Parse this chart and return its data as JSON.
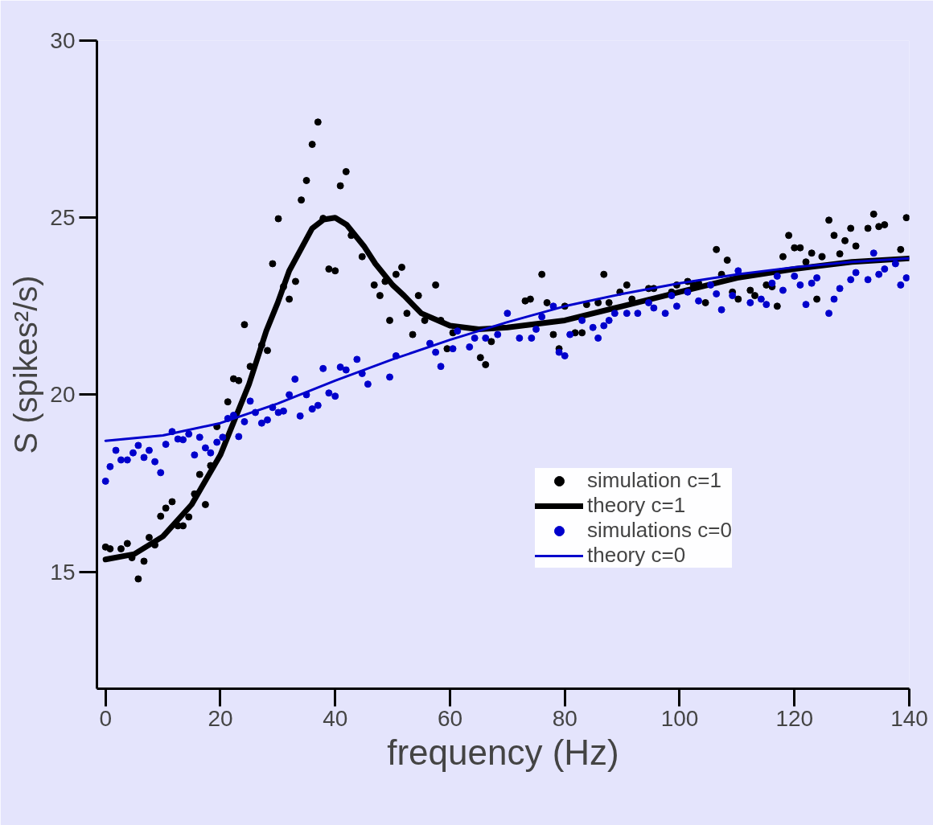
{
  "chart_data": {
    "type": "scatter",
    "xlabel": "frequency (Hz)",
    "ylabel": "S (spikes²/s)",
    "xlim": [
      -1.5,
      140
    ],
    "ylim": [
      11.7,
      30
    ],
    "xticks": [
      0,
      20,
      40,
      60,
      80,
      100,
      120,
      140
    ],
    "yticks": [
      15,
      20,
      25,
      30
    ],
    "grid": false,
    "legend": "right",
    "series": [
      {
        "name": "simulation c=1",
        "marker": "circle",
        "color": "#000000",
        "x": [
          0,
          0.8,
          2.7,
          3.8,
          4.6,
          5.7,
          6.7,
          7.6,
          8.6,
          9.6,
          10.5,
          11.6,
          12.6,
          13.5,
          14.5,
          15.5,
          16.4,
          17.4,
          18.3,
          19.4,
          21.3,
          22.3,
          23.2,
          24.2,
          25.2,
          27.2,
          28.2,
          29.1,
          30.1,
          31,
          32,
          33.1,
          34.1,
          35,
          36,
          37,
          37.9,
          38.9,
          40,
          40.9,
          41.9,
          42.8,
          44.7,
          46.8,
          47.8,
          48.7,
          49.5,
          50.6,
          51.6,
          52.5,
          53.5,
          54.5,
          55.6,
          57.5,
          58.4,
          59.5,
          60.5,
          65.3,
          66.2,
          67.2,
          73.1,
          74,
          76,
          76.9,
          78,
          79,
          80,
          81.8,
          83,
          83.8,
          85.8,
          86.8,
          87.7,
          89.6,
          90.8,
          91.7,
          94.6,
          95.5,
          98.6,
          99.5,
          101.4,
          102.4,
          103.3,
          104.5,
          106.4,
          107.3,
          108.3,
          109.2,
          110.2,
          112.3,
          113.1,
          115.1,
          116.1,
          117,
          118,
          119,
          120,
          121,
          122,
          123,
          123.9,
          124.8,
          126,
          126.9,
          127.9,
          128.8,
          129.8,
          130.7,
          132.8,
          133.8,
          134.7,
          135.7,
          138.5,
          139.5
        ],
        "values": [
          15.7,
          15.65,
          15.65,
          15.8,
          15.4,
          14.8,
          15.3,
          15.97,
          15.76,
          16.57,
          16.8,
          16.98,
          16.3,
          16.3,
          16.55,
          17.2,
          17.75,
          16.9,
          18.0,
          19.1,
          19.8,
          20.45,
          20.4,
          21.98,
          20.8,
          21.4,
          21.25,
          23.7,
          24.97,
          23.05,
          22.7,
          23.2,
          25.5,
          26.05,
          27.07,
          27.7,
          24.98,
          23.55,
          23.5,
          25.9,
          26.3,
          24.5,
          23.9,
          23.1,
          22.8,
          23.2,
          22.1,
          23.4,
          23.6,
          22.3,
          21.7,
          22.8,
          22.1,
          23.1,
          22.1,
          21.3,
          21.75,
          21.05,
          20.85,
          21.5,
          22.65,
          22.7,
          23.4,
          22.6,
          21.7,
          21.3,
          22.5,
          21.75,
          21.75,
          22.55,
          22.6,
          23.4,
          22.6,
          22.9,
          23.1,
          22.7,
          23.0,
          23.0,
          22.9,
          23.1,
          23.2,
          23.1,
          23.15,
          22.6,
          24.1,
          23.4,
          23.8,
          22.9,
          22.7,
          22.95,
          22.8,
          23.1,
          23.05,
          22.5,
          23.9,
          24.5,
          24.15,
          24.15,
          23.75,
          24.0,
          22.7,
          23.9,
          24.93,
          24.5,
          23.98,
          24.35,
          24.7,
          24.2,
          24.7,
          25.1,
          24.75,
          24.8,
          24.1,
          25.0
        ]
      },
      {
        "name": "theory c=1",
        "type": "line",
        "marker": "none",
        "color": "#000000",
        "x": [
          0,
          5,
          10,
          15,
          20,
          25,
          28,
          30,
          32,
          35,
          36,
          38,
          40,
          42,
          45,
          47,
          50,
          52,
          55,
          60,
          65,
          70,
          80,
          90,
          100,
          110,
          120,
          130,
          140
        ],
        "values": [
          15.35,
          15.5,
          16.0,
          16.9,
          18.3,
          20.3,
          21.8,
          22.6,
          23.5,
          24.4,
          24.7,
          24.95,
          25.0,
          24.8,
          24.2,
          23.7,
          23.1,
          22.8,
          22.3,
          21.95,
          21.85,
          21.9,
          22.1,
          22.5,
          22.9,
          23.3,
          23.55,
          23.75,
          23.85
        ]
      },
      {
        "name": "simulations c=0",
        "marker": "circle",
        "color": "#0000cc",
        "x": [
          0,
          0.8,
          1.8,
          2.7,
          3.8,
          4.8,
          5.7,
          6.7,
          7.6,
          8.6,
          9.6,
          10.5,
          11.6,
          12.6,
          13.5,
          14.5,
          15.5,
          16.4,
          17.4,
          18.3,
          19.4,
          20.4,
          21.3,
          22.3,
          23.2,
          24.2,
          25.2,
          26.1,
          27.2,
          28.2,
          29.1,
          30.1,
          31,
          32,
          33,
          33.9,
          35,
          36,
          37,
          37.9,
          38.9,
          40,
          40.9,
          41.9,
          43.8,
          44.7,
          45.7,
          49.5,
          50.6,
          56.5,
          57.5,
          58.4,
          60.5,
          61.3,
          63.4,
          64.3,
          66.2,
          68.3,
          70,
          72.1,
          74.2,
          75,
          76,
          78,
          79,
          80,
          80.9,
          83,
          84.9,
          85.8,
          86.8,
          87.7,
          88.7,
          90.8,
          92.7,
          94.6,
          95.5,
          97.5,
          98.6,
          99.5,
          101.4,
          103.3,
          105.4,
          106.4,
          107.3,
          109.2,
          110.2,
          112.3,
          114.2,
          115.1,
          116.1,
          117,
          118,
          120,
          121,
          122,
          123,
          123.9,
          126,
          126.9,
          127.9,
          129.8,
          130.7,
          132.8,
          133.8,
          134.7,
          135.7,
          137.6,
          138.5,
          139.5
        ],
        "values": [
          17.56,
          17.97,
          18.43,
          18.16,
          18.16,
          18.36,
          18.57,
          18.23,
          18.43,
          18.11,
          17.8,
          18.6,
          18.96,
          18.75,
          18.73,
          18.89,
          18.3,
          18.8,
          18.5,
          18.36,
          18.66,
          18.8,
          19.33,
          19.42,
          18.82,
          19.24,
          19.82,
          19.5,
          19.2,
          19.29,
          19.64,
          19.5,
          19.54,
          20.0,
          20.44,
          19.4,
          20.0,
          19.6,
          19.7,
          20.74,
          20.05,
          19.96,
          20.78,
          20.7,
          21.0,
          20.6,
          20.3,
          20.5,
          21.1,
          21.45,
          21.2,
          20.8,
          21.3,
          21.8,
          21.35,
          21.6,
          21.6,
          21.7,
          22.3,
          21.6,
          21.6,
          21.85,
          22.2,
          22.5,
          21.2,
          21.1,
          21.7,
          22.1,
          21.9,
          21.6,
          21.95,
          22.1,
          22.3,
          22.3,
          22.3,
          22.6,
          22.45,
          22.3,
          22.8,
          22.5,
          22.9,
          22.65,
          23.1,
          22.85,
          22.4,
          22.8,
          23.5,
          22.6,
          22.7,
          22.55,
          23.15,
          23.35,
          22.95,
          23.35,
          23.1,
          22.55,
          23.15,
          23.3,
          22.3,
          22.7,
          23.0,
          23.25,
          23.45,
          23.25,
          24.0,
          23.4,
          23.55,
          23.7,
          23.1,
          23.3
        ]
      },
      {
        "name": "theory c=0",
        "type": "line",
        "marker": "none",
        "color": "#0000cc",
        "x": [
          0,
          10,
          20,
          30,
          40,
          50,
          60,
          70,
          80,
          90,
          100,
          110,
          120,
          130,
          140
        ],
        "values": [
          18.7,
          18.85,
          19.2,
          19.75,
          20.4,
          21.0,
          21.55,
          22.05,
          22.5,
          22.85,
          23.15,
          23.4,
          23.6,
          23.75,
          23.85
        ]
      }
    ]
  }
}
